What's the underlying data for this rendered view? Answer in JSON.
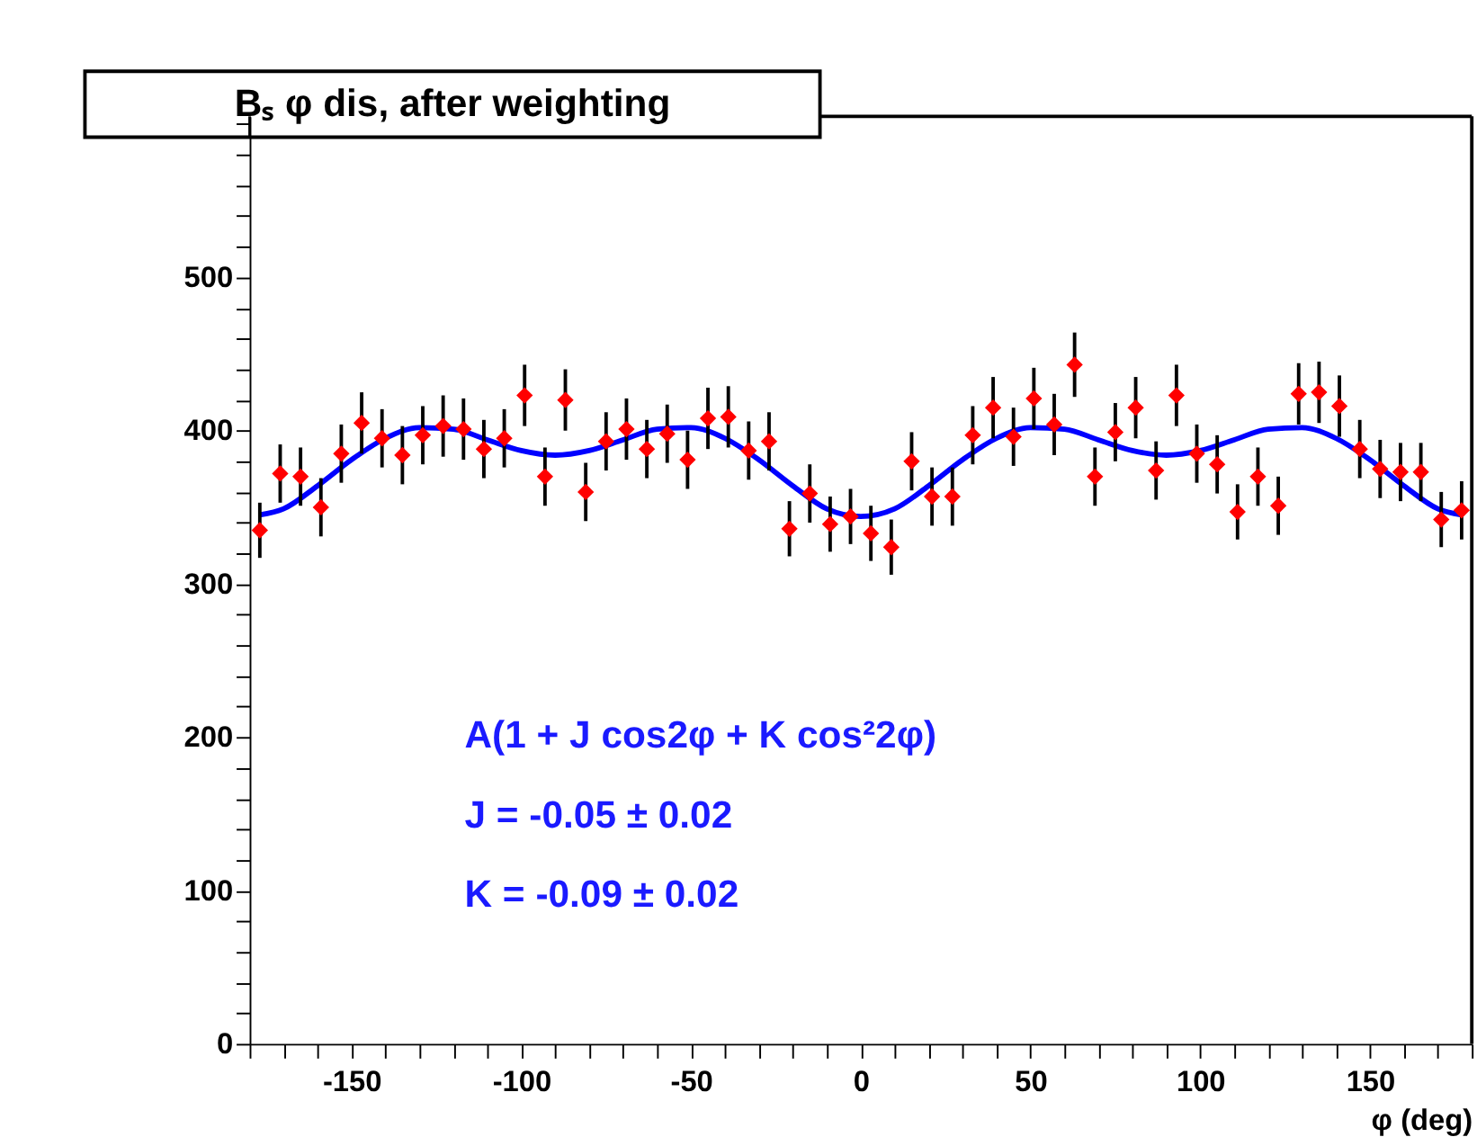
{
  "chart_data": {
    "type": "scatter",
    "title": "Bₛ φ dis, after weighting",
    "xlabel": "φ (deg)",
    "xlim": [
      -180,
      180
    ],
    "xticks": [
      {
        "value": -180,
        "label": null
      },
      {
        "value": -170,
        "label": null
      },
      {
        "value": -160,
        "label": null
      },
      -150,
      {
        "value": -140,
        "label": null
      },
      {
        "value": -130,
        "label": null
      },
      {
        "value": -120,
        "label": null
      },
      {
        "value": -110,
        "label": null
      },
      -100,
      {
        "value": -90,
        "label": null
      },
      {
        "value": -80,
        "label": null
      },
      {
        "value": -70,
        "label": null
      },
      {
        "value": -60,
        "label": null
      },
      -50,
      {
        "value": -40,
        "label": null
      },
      {
        "value": -30,
        "label": null
      },
      {
        "value": -20,
        "label": null
      },
      {
        "value": -10,
        "label": null
      },
      0,
      {
        "value": 10,
        "label": null
      },
      {
        "value": 20,
        "label": null
      },
      {
        "value": 30,
        "label": null
      },
      {
        "value": 40,
        "label": null
      },
      50,
      {
        "value": 60,
        "label": null
      },
      {
        "value": 70,
        "label": null
      },
      {
        "value": 80,
        "label": null
      },
      {
        "value": 90,
        "label": null
      },
      100,
      {
        "value": 110,
        "label": null
      },
      {
        "value": 120,
        "label": null
      },
      {
        "value": 130,
        "label": null
      },
      {
        "value": 140,
        "label": null
      },
      150,
      {
        "value": 160,
        "label": null
      },
      {
        "value": 170,
        "label": null
      },
      {
        "value": 180,
        "label": null
      }
    ],
    "ylim": [
      0,
      605
    ],
    "yticks": [
      0,
      {
        "value": 20,
        "label": null
      },
      {
        "value": 40,
        "label": null
      },
      {
        "value": 60,
        "label": null
      },
      {
        "value": 80,
        "label": null
      },
      100,
      {
        "value": 120,
        "label": null
      },
      {
        "value": 140,
        "label": null
      },
      {
        "value": 160,
        "label": null
      },
      {
        "value": 180,
        "label": null
      },
      200,
      {
        "value": 220,
        "label": null
      },
      {
        "value": 240,
        "label": null
      },
      {
        "value": 260,
        "label": null
      },
      {
        "value": 280,
        "label": null
      },
      300,
      {
        "value": 320,
        "label": null
      },
      {
        "value": 340,
        "label": null
      },
      {
        "value": 360,
        "label": null
      },
      {
        "value": 380,
        "label": null
      },
      400,
      {
        "value": 420,
        "label": null
      },
      {
        "value": 440,
        "label": null
      },
      {
        "value": 460,
        "label": null
      },
      {
        "value": 480,
        "label": null
      },
      500,
      {
        "value": 520,
        "label": null
      },
      {
        "value": 540,
        "label": null
      },
      {
        "value": 560,
        "label": null
      },
      {
        "value": 580,
        "label": null
      },
      {
        "value": 600,
        "label": null
      }
    ],
    "grid": false,
    "legend": false,
    "marker": "diamond",
    "annotations": [
      "A(1 +  J cos2φ +  K cos²2φ)",
      "J = -0.05 ± 0.02",
      "K = -0.09 ± 0.02"
    ],
    "series": [
      {
        "color": "#ff0000",
        "x": [
          -177,
          -171,
          -165,
          -159,
          -153,
          -147,
          -141,
          -135,
          -129,
          -123,
          -117,
          -111,
          -105,
          -99,
          -93,
          -87,
          -81,
          -75,
          -69,
          -63,
          -57,
          -51,
          -45,
          -39,
          -33,
          -27,
          -21,
          -15,
          -9,
          -3,
          3,
          9,
          15,
          21,
          27,
          33,
          39,
          45,
          51,
          57,
          63,
          69,
          75,
          81,
          87,
          93,
          99,
          105,
          111,
          117,
          123,
          129,
          135,
          141,
          147,
          153,
          159,
          165,
          171,
          177
        ],
        "values": [
          335,
          372,
          370,
          350,
          385,
          405,
          395,
          384,
          397,
          403,
          401,
          388,
          395,
          423,
          370,
          420,
          360,
          393,
          401,
          388,
          398,
          381,
          408,
          409,
          387,
          393,
          336,
          359,
          339,
          344,
          333,
          324,
          380,
          357,
          357,
          397,
          415,
          396,
          421,
          404,
          443,
          370,
          399,
          415,
          374,
          423,
          385,
          378,
          347,
          370,
          351,
          424,
          425,
          416,
          388,
          375,
          373,
          373,
          342,
          348
        ],
        "errors": [
          18,
          19,
          19,
          19,
          19,
          20,
          19,
          19,
          19,
          20,
          20,
          19,
          19,
          20,
          19,
          20,
          19,
          19,
          20,
          19,
          19,
          19,
          20,
          20,
          19,
          19,
          18,
          19,
          18,
          18,
          18,
          18,
          19,
          19,
          19,
          19,
          20,
          19,
          20,
          20,
          21,
          19,
          19,
          20,
          19,
          20,
          19,
          19,
          18,
          19,
          19,
          20,
          20,
          20,
          19,
          19,
          19,
          19,
          18,
          19
        ]
      },
      {
        "type": "line",
        "color": "#0000ff",
        "line_style": "solid",
        "marker": "none",
        "x": [
          -177,
          -170,
          -160,
          -150,
          -140,
          -130,
          -120,
          -110,
          -100,
          -90,
          -80,
          -70,
          -60,
          -50,
          -40,
          -30,
          -20,
          -10,
          0,
          10,
          20,
          30,
          40,
          50,
          60,
          70,
          80,
          90,
          100,
          110,
          120,
          130,
          140,
          150,
          160,
          170,
          177
        ],
        "values": [
          345,
          349,
          364,
          381,
          395,
          402,
          401,
          394,
          387,
          384,
          387,
          394,
          401,
          402,
          395,
          381,
          364,
          349,
          344,
          349,
          364,
          381,
          395,
          402,
          401,
          394,
          387,
          384,
          387,
          394,
          401,
          402,
          395,
          381,
          364,
          349,
          345
        ]
      }
    ]
  }
}
